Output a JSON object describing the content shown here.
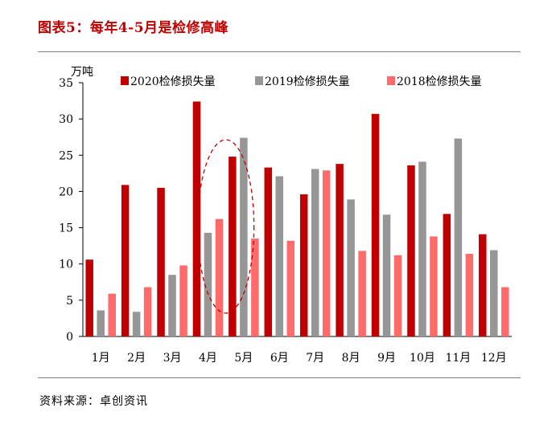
{
  "figure_title": "图表5：每年4-5月是检修高峰",
  "source": "资料来源：卓创资讯",
  "chart_data": {
    "type": "bar",
    "title": "",
    "ylabel": "万吨",
    "xlabel": "",
    "ylim": [
      0,
      35
    ],
    "yticks": [
      0,
      5,
      10,
      15,
      20,
      25,
      30,
      35
    ],
    "categories": [
      "1月",
      "2月",
      "3月",
      "4月",
      "5月",
      "6月",
      "7月",
      "8月",
      "9月",
      "10月",
      "11月",
      "12月"
    ],
    "series": [
      {
        "name": "2020检修损失量",
        "color": "#c00000",
        "values": [
          10.6,
          20.9,
          20.5,
          32.4,
          24.8,
          23.3,
          19.6,
          23.8,
          30.7,
          23.6,
          16.9,
          14.1
        ]
      },
      {
        "name": "2019检修损失量",
        "color": "#969696",
        "values": [
          3.6,
          3.4,
          8.5,
          14.3,
          27.4,
          22.1,
          23.1,
          18.9,
          16.8,
          24.1,
          27.3,
          11.9
        ]
      },
      {
        "name": "2018检修损失量",
        "color": "#ff6b6b",
        "values": [
          5.9,
          6.8,
          9.8,
          16.2,
          13.5,
          13.2,
          22.9,
          11.8,
          11.2,
          13.8,
          11.4,
          6.8
        ]
      }
    ],
    "legend_position": "top",
    "grid": false,
    "annotation": {
      "type": "dashed-ellipse",
      "around_categories": [
        "4月",
        "5月"
      ],
      "color": "#c00000"
    }
  }
}
